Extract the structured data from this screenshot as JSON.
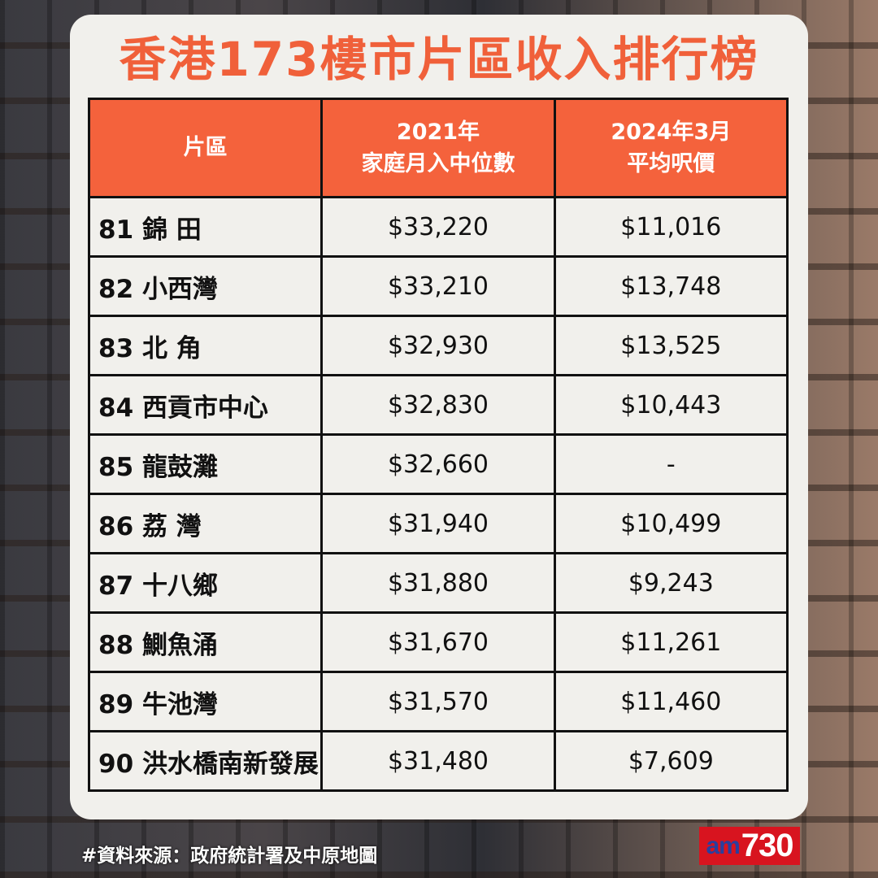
{
  "title": "香港173樓市片區收入排行榜",
  "columns": [
    "片區",
    "2021年\n家庭月入中位數",
    "2024年3月\n平均呎價"
  ],
  "column_lines": [
    [
      "片區"
    ],
    [
      "2021年",
      "家庭月入中位數"
    ],
    [
      "2024年3月",
      "平均呎價"
    ]
  ],
  "rows": [
    {
      "rank": "81",
      "district": "錦 田",
      "income": "$33,220",
      "price": "$11,016"
    },
    {
      "rank": "82",
      "district": "小西灣",
      "income": "$33,210",
      "price": "$13,748"
    },
    {
      "rank": "83",
      "district": "北 角",
      "income": "$32,930",
      "price": "$13,525"
    },
    {
      "rank": "84",
      "district": "西貢市中心",
      "income": "$32,830",
      "price": "$10,443"
    },
    {
      "rank": "85",
      "district": "龍鼓灘",
      "income": "$32,660",
      "price": "-"
    },
    {
      "rank": "86",
      "district": "荔 灣",
      "income": "$31,940",
      "price": "$10,499"
    },
    {
      "rank": "87",
      "district": "十八鄉",
      "income": "$31,880",
      "price": "$9,243"
    },
    {
      "rank": "88",
      "district": "鰂魚涌",
      "income": "$31,670",
      "price": "$11,261"
    },
    {
      "rank": "89",
      "district": "牛池灣",
      "income": "$31,570",
      "price": "$11,460"
    },
    {
      "rank": "90",
      "district": "洪水橋南新發展",
      "income": "$31,480",
      "price": "$7,609"
    }
  ],
  "source": "#資料來源：政府統計署及中原地圖",
  "logo": {
    "text": "am730",
    "am": "am",
    "num": "730"
  },
  "colors": {
    "accent": "#f4623c",
    "title": "#f0603a",
    "logo_bg": "#d8141f"
  }
}
